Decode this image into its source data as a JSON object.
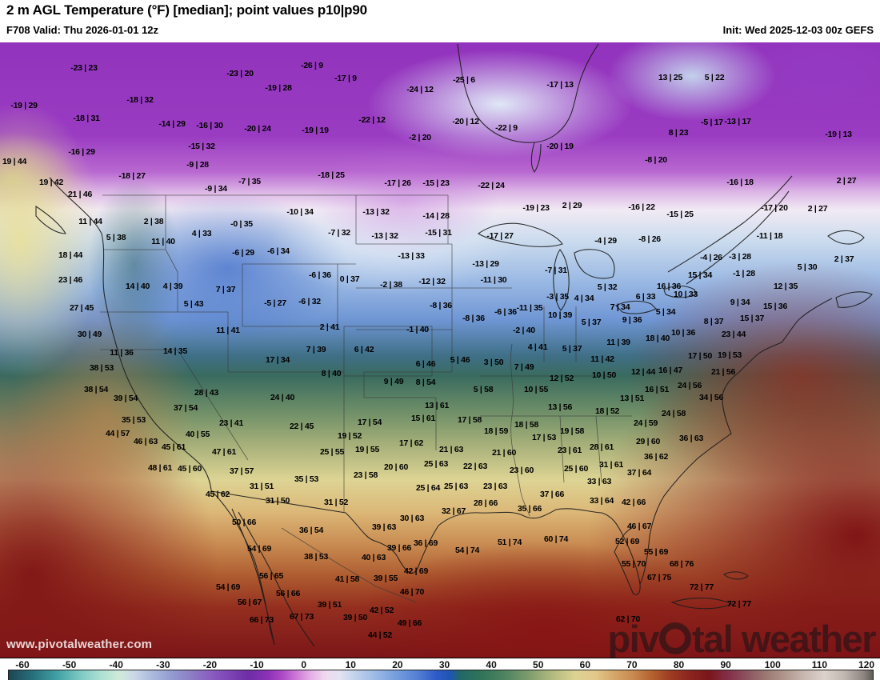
{
  "header": {
    "title": "2 m AGL Temperature (°F) [median]; point values p10|p90",
    "valid": "F708 Valid: Thu 2026-01-01 12z",
    "init": "Init: Wed 2025-12-03 00z GEFS"
  },
  "watermarks": {
    "site": "www.pivotalweather.com",
    "logo_left": "piv",
    "logo_right": "tal weather"
  },
  "colorbar": {
    "unit": "°F",
    "min": -60,
    "max": 120,
    "ticks": [
      "-60",
      "-50",
      "-40",
      "-30",
      "-20",
      "-10",
      "0",
      "10",
      "20",
      "30",
      "40",
      "50",
      "60",
      "70",
      "80",
      "90",
      "100",
      "110",
      "120"
    ],
    "stops": [
      {
        "t": -60,
        "c": "#1c4653"
      },
      {
        "t": -55,
        "c": "#27707c"
      },
      {
        "t": -50,
        "c": "#41a0a5"
      },
      {
        "t": -45,
        "c": "#7ecac4"
      },
      {
        "t": -41,
        "c": "#abdfd3"
      },
      {
        "t": -37,
        "c": "#cfead9"
      },
      {
        "t": -34,
        "c": "#ccd8e8"
      },
      {
        "t": -30,
        "c": "#aab9dc"
      },
      {
        "t": -26,
        "c": "#929bd0"
      },
      {
        "t": -22,
        "c": "#8d7dc5"
      },
      {
        "t": -18,
        "c": "#8a5ec0"
      },
      {
        "t": -14,
        "c": "#7d44b4"
      },
      {
        "t": -10,
        "c": "#6e2da6"
      },
      {
        "t": -6,
        "c": "#8c32b8"
      },
      {
        "t": -3,
        "c": "#ad49c6"
      },
      {
        "t": 0,
        "c": "#cd7bd6"
      },
      {
        "t": 3,
        "c": "#e5b0e6"
      },
      {
        "t": 6,
        "c": "#efdaf0"
      },
      {
        "t": 9,
        "c": "#e2e2f2"
      },
      {
        "t": 12,
        "c": "#c3d3ec"
      },
      {
        "t": 16,
        "c": "#9fbce6"
      },
      {
        "t": 20,
        "c": "#7ba2de"
      },
      {
        "t": 25,
        "c": "#5581d4"
      },
      {
        "t": 29,
        "c": "#2f5bca"
      },
      {
        "t": 32,
        "c": "#1f55b0"
      },
      {
        "t": 34,
        "c": "#226868"
      },
      {
        "t": 38,
        "c": "#2f7259"
      },
      {
        "t": 43,
        "c": "#4c8260"
      },
      {
        "t": 48,
        "c": "#7a9a6c"
      },
      {
        "t": 53,
        "c": "#b0b97e"
      },
      {
        "t": 58,
        "c": "#dcd392"
      },
      {
        "t": 62,
        "c": "#e3c98b"
      },
      {
        "t": 66,
        "c": "#d5a76a"
      },
      {
        "t": 70,
        "c": "#c98a50"
      },
      {
        "t": 74,
        "c": "#b5612f"
      },
      {
        "t": 78,
        "c": "#9c3a22"
      },
      {
        "t": 82,
        "c": "#8a241e"
      },
      {
        "t": 86,
        "c": "#7a161c"
      },
      {
        "t": 90,
        "c": "#84304a"
      },
      {
        "t": 94,
        "c": "#8d5560"
      },
      {
        "t": 98,
        "c": "#9c7b74"
      },
      {
        "t": 102,
        "c": "#b29a90"
      },
      {
        "t": 106,
        "c": "#c9bab2"
      },
      {
        "t": 110,
        "c": "#dcd2cc"
      },
      {
        "t": 114,
        "c": "#c2b8b2"
      },
      {
        "t": 118,
        "c": "#8f8682"
      },
      {
        "t": 120,
        "c": "#615c58"
      }
    ]
  },
  "map": {
    "points": [
      [
        105,
        85,
        "-23 | 23"
      ],
      [
        390,
        82,
        "-26 | 9"
      ],
      [
        300,
        92,
        "-23 | 20"
      ],
      [
        432,
        98,
        "-17 | 9"
      ],
      [
        838,
        97,
        "13 | 25"
      ],
      [
        893,
        97,
        "5 | 22"
      ],
      [
        525,
        112,
        "-24 | 12"
      ],
      [
        30,
        132,
        "-19 | 29"
      ],
      [
        175,
        125,
        "-18 | 32"
      ],
      [
        108,
        148,
        "-18 | 31"
      ],
      [
        348,
        110,
        "-19 | 28"
      ],
      [
        580,
        100,
        "-25 | 6"
      ],
      [
        700,
        106,
        "-17 | 13"
      ],
      [
        465,
        150,
        "-22 | 12"
      ],
      [
        215,
        155,
        "-14 | 29"
      ],
      [
        262,
        157,
        "-16 | 30"
      ],
      [
        322,
        161,
        "-20 | 24"
      ],
      [
        394,
        163,
        "-19 | 19"
      ],
      [
        582,
        152,
        "-20 | 12"
      ],
      [
        633,
        160,
        "-22 | 9"
      ],
      [
        525,
        172,
        "-2 | 20"
      ],
      [
        102,
        190,
        "-16 | 29"
      ],
      [
        252,
        183,
        "-15 | 32"
      ],
      [
        890,
        153,
        "-5 | 17"
      ],
      [
        922,
        152,
        "-13 | 17"
      ],
      [
        848,
        166,
        "8 | 23"
      ],
      [
        1048,
        168,
        "-19 | 13"
      ],
      [
        247,
        206,
        "-9 | 28"
      ],
      [
        700,
        183,
        "-20 | 19"
      ],
      [
        165,
        220,
        "-18 | 27"
      ],
      [
        18,
        202,
        "19 | 44"
      ],
      [
        64,
        228,
        "19 | 42"
      ],
      [
        820,
        200,
        "-8 | 20"
      ],
      [
        925,
        228,
        "-16 | 18"
      ],
      [
        1058,
        226,
        "2 | 27"
      ],
      [
        414,
        219,
        "-18 | 25"
      ],
      [
        312,
        227,
        "-7 | 35"
      ],
      [
        497,
        229,
        "-17 | 26"
      ],
      [
        545,
        229,
        "-15 | 23"
      ],
      [
        614,
        232,
        "-22 | 24"
      ],
      [
        270,
        236,
        "-9 | 34"
      ],
      [
        100,
        243,
        "21 | 46"
      ],
      [
        850,
        268,
        "-15 | 25"
      ],
      [
        968,
        260,
        "-17 | 20"
      ],
      [
        1022,
        261,
        "2 | 27"
      ],
      [
        802,
        259,
        "-16 | 22"
      ],
      [
        670,
        260,
        "-19 | 23"
      ],
      [
        715,
        257,
        "2 | 29"
      ],
      [
        962,
        295,
        "-11 | 18"
      ],
      [
        375,
        265,
        "-10 | 34"
      ],
      [
        470,
        265,
        "-13 | 32"
      ],
      [
        545,
        270,
        "-14 | 28"
      ],
      [
        302,
        280,
        "-0 | 35"
      ],
      [
        424,
        291,
        "-7 | 32"
      ],
      [
        481,
        295,
        "-13 | 32"
      ],
      [
        548,
        291,
        "-15 | 31"
      ],
      [
        625,
        295,
        "-17 | 27"
      ],
      [
        757,
        301,
        "-4 | 29"
      ],
      [
        812,
        299,
        "-8 | 26"
      ],
      [
        192,
        277,
        "2 | 38"
      ],
      [
        113,
        277,
        "11 | 44"
      ],
      [
        145,
        297,
        "5 | 38"
      ],
      [
        204,
        302,
        "11 | 40"
      ],
      [
        252,
        292,
        "4 | 33"
      ],
      [
        889,
        322,
        "-4 | 26"
      ],
      [
        925,
        321,
        "-3 | 28"
      ],
      [
        1055,
        324,
        "2 | 37"
      ],
      [
        1009,
        334,
        "5 | 30"
      ],
      [
        607,
        330,
        "-13 | 29"
      ],
      [
        514,
        320,
        "-13 | 33"
      ],
      [
        304,
        316,
        "-6 | 29"
      ],
      [
        348,
        314,
        "-6 | 34"
      ],
      [
        88,
        319,
        "18 | 44"
      ],
      [
        617,
        350,
        "-11 | 30"
      ],
      [
        695,
        338,
        "-7 | 31"
      ],
      [
        930,
        342,
        "-1 | 28"
      ],
      [
        875,
        344,
        "15 | 34"
      ],
      [
        400,
        344,
        "-6 | 36"
      ],
      [
        437,
        349,
        "0 | 37"
      ],
      [
        88,
        350,
        "23 | 46"
      ],
      [
        172,
        358,
        "14 | 40"
      ],
      [
        216,
        358,
        "4 | 39"
      ],
      [
        540,
        352,
        "-12 | 32"
      ],
      [
        489,
        356,
        "-2 | 38"
      ],
      [
        836,
        358,
        "16 | 36"
      ],
      [
        982,
        358,
        "12 | 35"
      ],
      [
        759,
        359,
        "5 | 32"
      ],
      [
        344,
        379,
        "-5 | 27"
      ],
      [
        387,
        377,
        "-6 | 32"
      ],
      [
        282,
        362,
        "7 | 37"
      ],
      [
        807,
        371,
        "6 | 33"
      ],
      [
        697,
        371,
        "-3 | 35"
      ],
      [
        730,
        373,
        "4 | 34"
      ],
      [
        857,
        368,
        "10 | 33"
      ],
      [
        925,
        378,
        "9 | 34"
      ],
      [
        969,
        383,
        "15 | 36"
      ],
      [
        775,
        384,
        "7 | 34"
      ],
      [
        662,
        385,
        "-11 | 35"
      ],
      [
        632,
        390,
        "-6 | 36"
      ],
      [
        592,
        398,
        "-8 | 36"
      ],
      [
        551,
        382,
        "-8 | 36"
      ],
      [
        832,
        390,
        "5 | 34"
      ],
      [
        940,
        398,
        "15 | 37"
      ],
      [
        892,
        402,
        "8 | 37"
      ],
      [
        700,
        394,
        "10 | 39"
      ],
      [
        790,
        400,
        "9 | 36"
      ],
      [
        412,
        409,
        "2 | 41"
      ],
      [
        522,
        412,
        "-1 | 40"
      ],
      [
        655,
        413,
        "-2 | 40"
      ],
      [
        739,
        403,
        "5 | 37"
      ],
      [
        854,
        416,
        "10 | 36"
      ],
      [
        917,
        418,
        "23 | 44"
      ],
      [
        822,
        423,
        "18 | 40"
      ],
      [
        102,
        385,
        "27 | 45"
      ],
      [
        242,
        380,
        "5 | 43"
      ],
      [
        112,
        418,
        "30 | 49"
      ],
      [
        285,
        413,
        "11 | 41"
      ],
      [
        395,
        437,
        "7 | 39"
      ],
      [
        455,
        437,
        "6 | 42"
      ],
      [
        672,
        434,
        "4 | 41"
      ],
      [
        773,
        428,
        "11 | 39"
      ],
      [
        715,
        436,
        "5 | 37"
      ],
      [
        753,
        449,
        "11 | 42"
      ],
      [
        875,
        445,
        "17 | 50"
      ],
      [
        912,
        444,
        "19 | 53"
      ],
      [
        152,
        441,
        "11 | 36"
      ],
      [
        219,
        439,
        "14 | 35"
      ],
      [
        347,
        450,
        "17 | 34"
      ],
      [
        414,
        467,
        "8 | 40"
      ],
      [
        575,
        450,
        "5 | 46"
      ],
      [
        617,
        453,
        "3 | 50"
      ],
      [
        655,
        459,
        "7 | 49"
      ],
      [
        804,
        465,
        "12 | 44"
      ],
      [
        838,
        463,
        "16 | 47"
      ],
      [
        492,
        477,
        "9 | 49"
      ],
      [
        532,
        455,
        "6 | 46"
      ],
      [
        532,
        478,
        "8 | 54"
      ],
      [
        702,
        473,
        "12 | 52"
      ],
      [
        755,
        469,
        "10 | 50"
      ],
      [
        904,
        465,
        "21 | 56"
      ],
      [
        862,
        482,
        "24 | 56"
      ],
      [
        821,
        487,
        "16 | 51"
      ],
      [
        127,
        460,
        "38 | 53"
      ],
      [
        353,
        497,
        "24 | 40"
      ],
      [
        258,
        491,
        "28 | 43"
      ],
      [
        604,
        487,
        "5 | 58"
      ],
      [
        670,
        487,
        "10 | 55"
      ],
      [
        790,
        498,
        "13 | 51"
      ],
      [
        889,
        497,
        "34 | 56"
      ],
      [
        120,
        487,
        "38 | 54"
      ],
      [
        157,
        498,
        "39 | 54"
      ],
      [
        700,
        509,
        "13 | 56"
      ],
      [
        759,
        514,
        "18 | 52"
      ],
      [
        546,
        507,
        "13 | 61"
      ],
      [
        462,
        528,
        "17 | 54"
      ],
      [
        529,
        523,
        "15 | 61"
      ],
      [
        289,
        529,
        "23 | 41"
      ],
      [
        377,
        533,
        "22 | 45"
      ],
      [
        232,
        510,
        "37 | 54"
      ],
      [
        842,
        517,
        "24 | 58"
      ],
      [
        807,
        529,
        "24 | 59"
      ],
      [
        587,
        525,
        "17 | 58"
      ],
      [
        620,
        539,
        "18 | 59"
      ],
      [
        658,
        531,
        "18 | 58"
      ],
      [
        715,
        539,
        "19 | 58"
      ],
      [
        167,
        525,
        "35 | 53"
      ],
      [
        680,
        547,
        "17 | 53"
      ],
      [
        437,
        545,
        "19 | 52"
      ],
      [
        514,
        554,
        "17 | 62"
      ],
      [
        247,
        543,
        "40 | 55"
      ],
      [
        147,
        542,
        "44 | 57"
      ],
      [
        459,
        562,
        "19 | 55"
      ],
      [
        415,
        565,
        "25 | 55"
      ],
      [
        810,
        552,
        "29 | 60"
      ],
      [
        864,
        548,
        "36 | 63"
      ],
      [
        182,
        552,
        "46 | 63"
      ],
      [
        217,
        559,
        "45 | 61"
      ],
      [
        564,
        562,
        "21 | 63"
      ],
      [
        712,
        563,
        "23 | 61"
      ],
      [
        752,
        559,
        "28 | 61"
      ],
      [
        280,
        565,
        "47 | 61"
      ],
      [
        495,
        584,
        "20 | 60"
      ],
      [
        594,
        583,
        "22 | 63"
      ],
      [
        630,
        566,
        "21 | 60"
      ],
      [
        764,
        581,
        "31 | 61"
      ],
      [
        820,
        571,
        "36 | 62"
      ],
      [
        799,
        591,
        "37 | 64"
      ],
      [
        200,
        585,
        "48 | 61"
      ],
      [
        237,
        586,
        "45 | 60"
      ],
      [
        302,
        589,
        "37 | 57"
      ],
      [
        457,
        594,
        "23 | 58"
      ],
      [
        749,
        602,
        "33 | 63"
      ],
      [
        545,
        580,
        "25 | 63"
      ],
      [
        652,
        588,
        "23 | 60"
      ],
      [
        720,
        586,
        "25 | 60"
      ],
      [
        327,
        608,
        "31 | 51"
      ],
      [
        383,
        599,
        "35 | 53"
      ],
      [
        535,
        610,
        "25 | 64"
      ],
      [
        570,
        608,
        "25 | 63"
      ],
      [
        619,
        608,
        "23 | 63"
      ],
      [
        272,
        618,
        "45 | 62"
      ],
      [
        690,
        618,
        "37 | 66"
      ],
      [
        347,
        626,
        "31 | 50"
      ],
      [
        420,
        628,
        "31 | 52"
      ],
      [
        607,
        629,
        "28 | 66"
      ],
      [
        567,
        639,
        "32 | 67"
      ],
      [
        662,
        636,
        "35 | 66"
      ],
      [
        752,
        626,
        "33 | 64"
      ],
      [
        792,
        628,
        "42 | 66"
      ],
      [
        515,
        648,
        "30 | 63"
      ],
      [
        305,
        653,
        "50 | 66"
      ],
      [
        389,
        663,
        "36 | 54"
      ],
      [
        480,
        659,
        "39 | 63"
      ],
      [
        799,
        658,
        "46 | 67"
      ],
      [
        324,
        686,
        "54 | 69"
      ],
      [
        499,
        685,
        "39 | 66"
      ],
      [
        532,
        679,
        "36 | 69"
      ],
      [
        637,
        678,
        "51 | 74"
      ],
      [
        695,
        674,
        "60 | 74"
      ],
      [
        584,
        688,
        "54 | 74"
      ],
      [
        784,
        677,
        "52 | 69"
      ],
      [
        395,
        696,
        "38 | 53"
      ],
      [
        467,
        697,
        "40 | 63"
      ],
      [
        820,
        690,
        "55 | 69"
      ],
      [
        520,
        714,
        "42 | 69"
      ],
      [
        339,
        720,
        "56 | 65"
      ],
      [
        434,
        724,
        "41 | 58"
      ],
      [
        482,
        723,
        "39 | 55"
      ],
      [
        792,
        705,
        "55 | 70"
      ],
      [
        852,
        705,
        "68 | 76"
      ],
      [
        824,
        722,
        "67 | 75"
      ],
      [
        285,
        734,
        "54 | 69"
      ],
      [
        515,
        740,
        "46 | 70"
      ],
      [
        360,
        742,
        "56 | 66"
      ],
      [
        877,
        734,
        "72 | 77"
      ],
      [
        312,
        753,
        "56 | 67"
      ],
      [
        412,
        756,
        "39 | 51"
      ],
      [
        477,
        763,
        "42 | 52"
      ],
      [
        327,
        775,
        "66 | 73"
      ],
      [
        377,
        771,
        "67 | 73"
      ],
      [
        444,
        772,
        "39 | 50"
      ],
      [
        512,
        779,
        "49 | 66"
      ],
      [
        785,
        774,
        "62 | 70"
      ],
      [
        924,
        755,
        "72 | 77"
      ],
      [
        475,
        794,
        "44 | 52"
      ]
    ]
  }
}
